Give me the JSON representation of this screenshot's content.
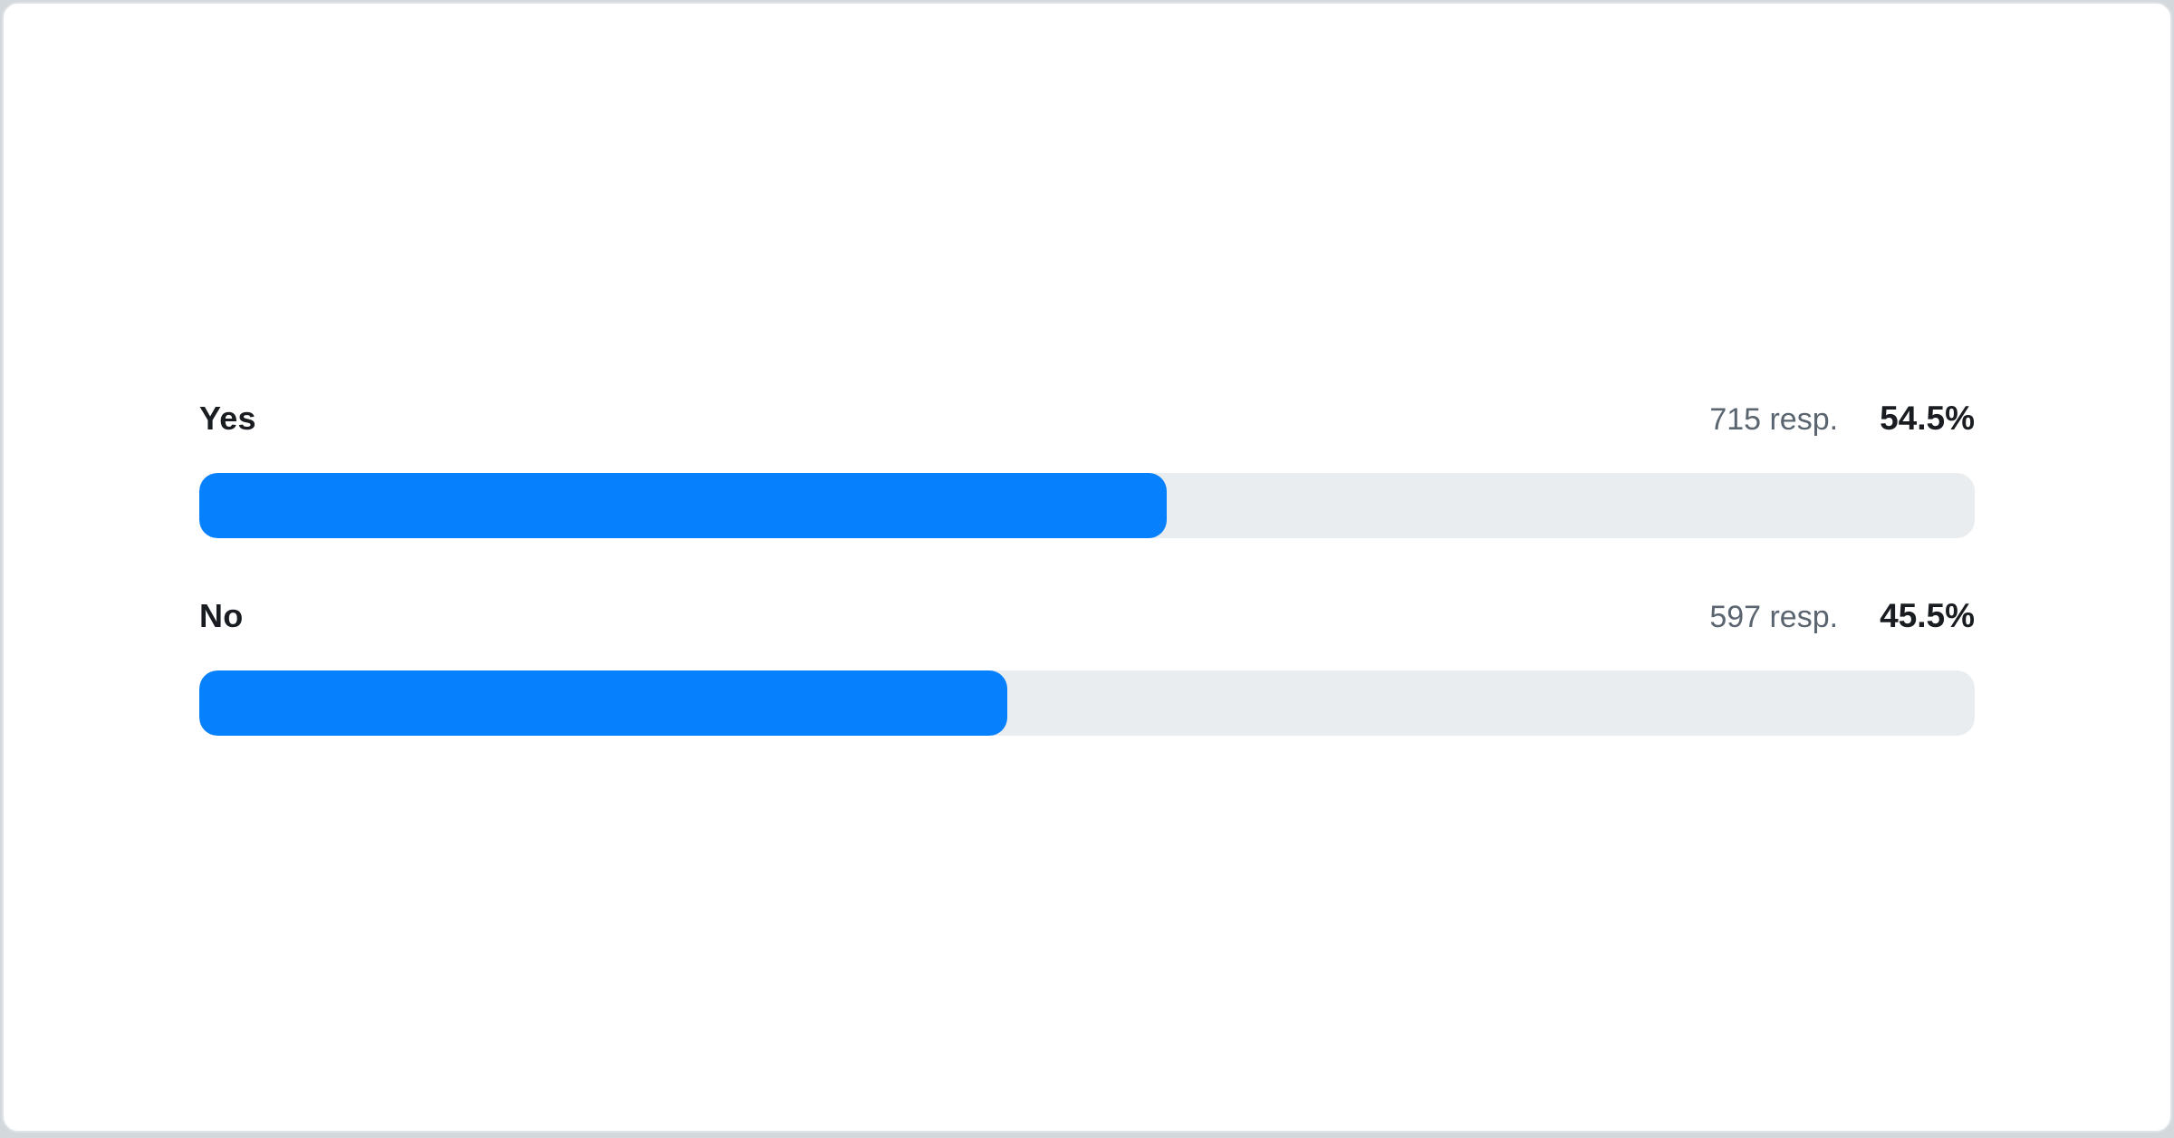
{
  "chart_data": {
    "type": "bar",
    "orientation": "horizontal",
    "categories": [
      "Yes",
      "No"
    ],
    "series": [
      {
        "name": "Responses",
        "values": [
          715,
          597
        ]
      },
      {
        "name": "Percent",
        "values": [
          54.5,
          45.5
        ]
      }
    ],
    "title": "",
    "xlabel": "",
    "ylabel": "",
    "xlim_percent": [
      0,
      100
    ],
    "grid": false,
    "legend": false
  },
  "rows": [
    {
      "label": "Yes",
      "responses_text": "715 resp.",
      "percent_text": "54.5%",
      "percent": 54.5
    },
    {
      "label": "No",
      "responses_text": "597 resp.",
      "percent_text": "45.5%",
      "percent": 45.5
    }
  ],
  "colors": {
    "bar_fill": "#0680fc",
    "bar_track": "#e9edf0",
    "label": "#191c20",
    "meta": "#5a6570",
    "card_bg": "#ffffff",
    "page_bg": "#d3d8dc"
  }
}
